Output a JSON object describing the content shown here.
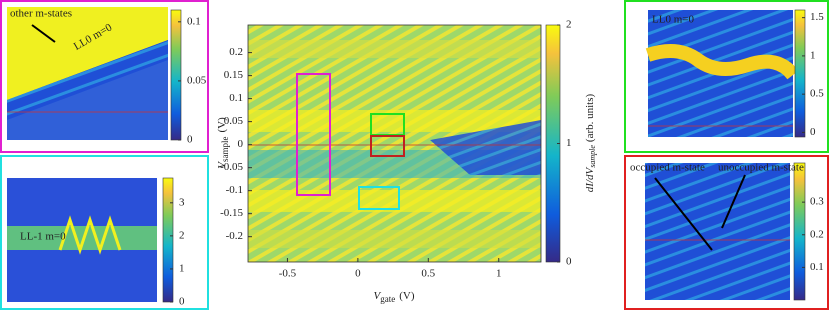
{
  "chart_data": [
    {
      "type": "heatmap",
      "xlabel": {
        "symbol": "V",
        "sub": "gate",
        "unit": "(V)"
      },
      "ylabel": {
        "symbol": "V",
        "sub": "sample",
        "unit": "(V)"
      },
      "xlim": [
        -0.78,
        1.3
      ],
      "xticks": [
        -0.5,
        0,
        0.5,
        1
      ],
      "ylim": [
        -0.255,
        0.26
      ],
      "yticks": [
        -0.2,
        -0.15,
        -0.1,
        -0.05,
        0,
        0.05,
        0.1,
        0.15,
        0.2
      ],
      "clim": [
        0,
        2
      ],
      "cticks": [
        0,
        1,
        2
      ],
      "colorbar_label": {
        "a": "dI/dV",
        "sub": "sample",
        "unit": "(arb. units)"
      }
    },
    {
      "type": "heatmap",
      "border_color": "#e020d0",
      "clim": [
        0,
        0.11
      ],
      "cticks": [
        0,
        0.05,
        0.1
      ],
      "annotations": [
        "other m-states",
        "LL0  m=0"
      ]
    },
    {
      "type": "heatmap",
      "border_color": "#20e0e0",
      "clim": [
        0,
        3.75
      ],
      "cticks": [
        0,
        1,
        2,
        3
      ],
      "annotations": [
        "LL-1  m=0"
      ]
    },
    {
      "type": "heatmap",
      "border_color": "#20e020",
      "clim": [
        -0.06,
        1.6
      ],
      "cticks": [
        0,
        0.5,
        1,
        1.5
      ],
      "annotations": [
        "LL0  m=0"
      ]
    },
    {
      "type": "heatmap",
      "border_color": "#e02020",
      "clim": [
        0,
        0.42
      ],
      "cticks": [
        0.1,
        0.2,
        0.3
      ],
      "annotations": [
        "occupied m-state",
        "unoccupied m-state"
      ]
    }
  ]
}
